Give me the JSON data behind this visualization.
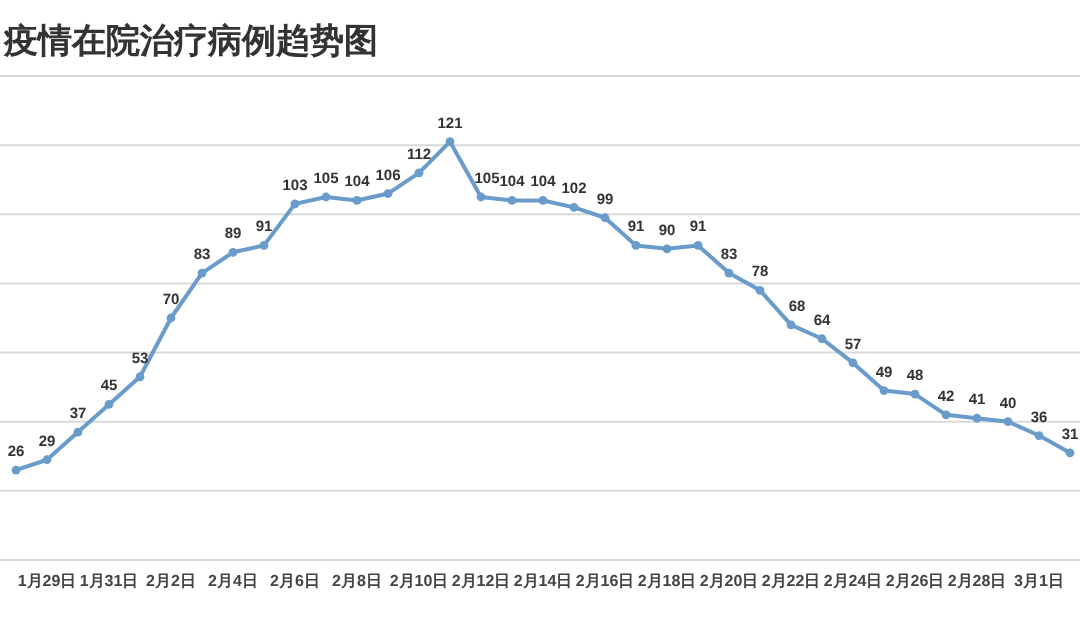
{
  "chart_data": {
    "type": "line",
    "title": "疫情在院治疗病例趋势图",
    "categories": [
      null,
      "1月29日",
      null,
      "1月31日",
      null,
      "2月2日",
      null,
      "2月4日",
      null,
      "2月6日",
      null,
      "2月8日",
      null,
      "2月10日",
      null,
      "2月12日",
      null,
      "2月14日",
      null,
      "2月16日",
      null,
      "2月18日",
      null,
      "2月20日",
      null,
      "2月22日",
      null,
      "2月24日",
      null,
      "2月26日",
      null,
      "2月28日",
      null,
      "3月1日",
      null
    ],
    "series": [
      {
        "color": "#6a9ccb",
        "values": [
          26,
          29,
          37,
          45,
          53,
          70,
          83,
          89,
          91,
          103,
          105,
          104,
          106,
          112,
          121,
          105,
          104,
          104,
          102,
          99,
          91,
          90,
          91,
          83,
          78,
          68,
          64,
          57,
          49,
          48,
          42,
          41,
          40,
          36,
          31
        ]
      }
    ],
    "ylim": [
      0,
      140
    ],
    "yticks": [
      {
        "value": 20,
        "label": null
      },
      {
        "value": 40,
        "label": null
      },
      {
        "value": 60,
        "label": null
      },
      {
        "value": 80,
        "label": null
      },
      {
        "value": 100,
        "label": null
      },
      {
        "value": 120,
        "label": null
      },
      {
        "value": 140,
        "label": null
      }
    ],
    "tick_labels": "x",
    "grid": "y",
    "marker": "circle",
    "line_style": "solid",
    "data_labels": true
  }
}
